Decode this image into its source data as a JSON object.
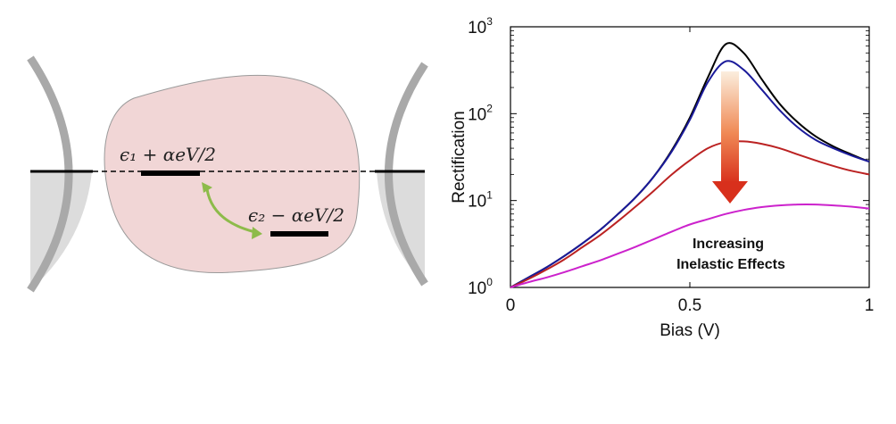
{
  "schematic": {
    "level1_label": "ϵ₁ + αeV/2",
    "level2_label": "ϵ₂ − αeV/2",
    "colors": {
      "molecule": "#f1d6d6",
      "electrode": "#dcdcdc",
      "electrode_edge": "#a9a9a9",
      "arrow": "#8dbb4a"
    }
  },
  "chart_data": {
    "type": "line",
    "xlabel": "Bias (V)",
    "ylabel": "Rectification",
    "xlim": [
      0,
      1
    ],
    "ylim": [
      1,
      1000
    ],
    "yscale": "log",
    "xticks": [
      0,
      0.5,
      1
    ],
    "xtick_labels": [
      "0",
      "0.5",
      "1"
    ],
    "ytick_exponents": [
      "0",
      "1",
      "2",
      "3"
    ],
    "grid": false,
    "annotation": [
      "Increasing",
      "Inelastic Effects"
    ],
    "series": [
      {
        "color": "#000000",
        "x": [
          0,
          0.05,
          0.1,
          0.15,
          0.2,
          0.25,
          0.3,
          0.35,
          0.4,
          0.45,
          0.5,
          0.55,
          0.6,
          0.65,
          0.7,
          0.75,
          0.8,
          0.85,
          0.9,
          0.95,
          1.0
        ],
        "y": [
          1,
          1.3,
          1.7,
          2.3,
          3.2,
          4.6,
          7,
          11,
          19,
          38,
          90,
          260,
          630,
          500,
          250,
          130,
          80,
          55,
          42,
          34,
          28
        ]
      },
      {
        "color": "#1a1a9a",
        "x": [
          0,
          0.05,
          0.1,
          0.15,
          0.2,
          0.25,
          0.3,
          0.35,
          0.4,
          0.45,
          0.5,
          0.55,
          0.6,
          0.65,
          0.7,
          0.75,
          0.8,
          0.85,
          0.9,
          0.95,
          1.0
        ],
        "y": [
          1,
          1.3,
          1.7,
          2.3,
          3.2,
          4.6,
          7,
          11,
          19,
          37,
          85,
          230,
          400,
          320,
          190,
          110,
          70,
          50,
          40,
          33,
          28
        ]
      },
      {
        "color": "#bb2222",
        "x": [
          0,
          0.05,
          0.1,
          0.15,
          0.2,
          0.25,
          0.3,
          0.35,
          0.4,
          0.45,
          0.5,
          0.55,
          0.6,
          0.65,
          0.7,
          0.75,
          0.8,
          0.85,
          0.9,
          0.95,
          1.0
        ],
        "y": [
          1,
          1.25,
          1.6,
          2.1,
          2.9,
          4.0,
          5.8,
          8.6,
          13,
          20,
          29,
          40,
          47,
          48,
          45,
          40,
          34,
          29,
          25,
          22,
          20
        ]
      },
      {
        "color": "#cc22cc",
        "x": [
          0,
          0.05,
          0.1,
          0.15,
          0.2,
          0.25,
          0.3,
          0.35,
          0.4,
          0.45,
          0.5,
          0.55,
          0.6,
          0.65,
          0.7,
          0.75,
          0.8,
          0.85,
          0.9,
          0.95,
          1.0
        ],
        "y": [
          1,
          1.15,
          1.3,
          1.5,
          1.75,
          2.05,
          2.45,
          2.95,
          3.6,
          4.4,
          5.3,
          6.1,
          7.0,
          7.8,
          8.4,
          8.8,
          9.0,
          9.0,
          8.8,
          8.5,
          8.1
        ]
      }
    ]
  }
}
